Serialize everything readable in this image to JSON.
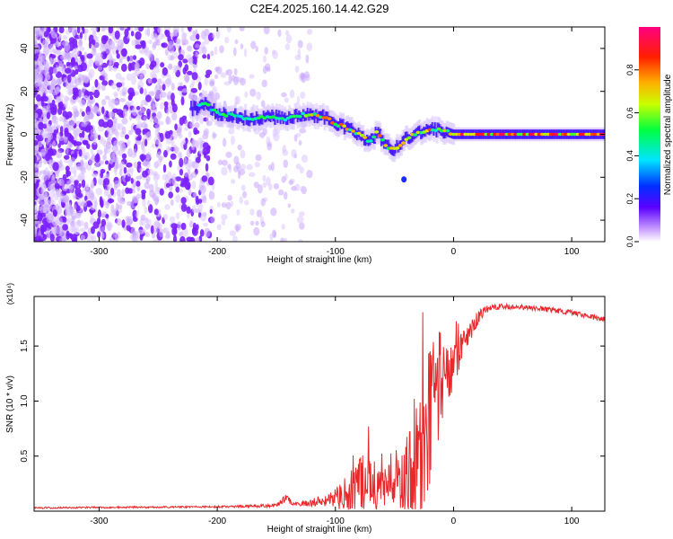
{
  "title": "C2E4.2025.160.14.42.G29",
  "chart_data": [
    {
      "type": "heatmap",
      "title": "C2E4.2025.160.14.42.G29",
      "xlabel": "Height of straight line (km)",
      "ylabel": "Frequency (Hz)",
      "xlim": [
        -355,
        128
      ],
      "ylim": [
        -50,
        50
      ],
      "x_ticks": [
        -300,
        -200,
        -100,
        0,
        100
      ],
      "y_ticks": [
        -40,
        -20,
        0,
        20,
        40
      ],
      "ridge": {
        "description": "centroid frequency of the dominant spectral ridge vs height",
        "x": [
          -220,
          -210,
          -200,
          -190,
          -180,
          -170,
          -160,
          -150,
          -140,
          -130,
          -120,
          -110,
          -100,
          -95,
          -90,
          -85,
          -80,
          -75,
          -70,
          -65,
          -60,
          -55,
          -50,
          -45,
          -40,
          -35,
          -30,
          -25,
          -20,
          -15,
          -10,
          -5,
          0,
          10,
          20,
          40,
          60,
          80,
          100,
          128
        ],
        "y": [
          12,
          14,
          10,
          9,
          8,
          7,
          8,
          8,
          7,
          9,
          9,
          8,
          5,
          4,
          3,
          2,
          0,
          -2,
          -3,
          1,
          -3,
          -6,
          -7,
          -5,
          -2,
          0,
          1,
          1,
          2,
          2,
          2,
          1,
          0,
          0,
          0,
          0,
          0,
          0,
          0,
          0
        ]
      },
      "noise_region_x": [
        -355,
        -200
      ],
      "colorbar": {
        "label": "Normalized spectral amplitude",
        "range": [
          0,
          1
        ],
        "ticks": [
          "0.0",
          "0.2",
          "0.4",
          "0.6",
          "0.8"
        ]
      }
    },
    {
      "type": "line",
      "title": "",
      "xlabel": "Height of straight line (km)",
      "ylabel": "SNR (10 * v/v)",
      "multiplier": "(x10⁴)",
      "xlim": [
        -355,
        128
      ],
      "ylim": [
        0,
        1.95
      ],
      "x_ticks": [
        -300,
        -200,
        -100,
        0,
        100
      ],
      "y_ticks": [
        "0.5",
        "1.0",
        "1.5"
      ],
      "line_color": "#e8292b",
      "envelope": {
        "description": "approximate SNR trend (x10^4) vs height; jagged noise of amplitude up to 'spread' overlaid",
        "x": [
          -355,
          -200,
          -150,
          -142,
          -135,
          -120,
          -100,
          -85,
          -75,
          -60,
          -45,
          -35,
          -25,
          -20,
          -15,
          -10,
          0,
          10,
          20,
          30,
          40,
          60,
          80,
          100,
          128
        ],
        "y": [
          0.03,
          0.04,
          0.05,
          0.12,
          0.06,
          0.08,
          0.12,
          0.18,
          0.3,
          0.2,
          0.25,
          0.4,
          0.55,
          0.9,
          1.0,
          1.1,
          1.3,
          1.55,
          1.75,
          1.85,
          1.86,
          1.85,
          1.83,
          1.8,
          1.74
        ],
        "spread": [
          0.01,
          0.01,
          0.02,
          0.05,
          0.02,
          0.05,
          0.1,
          0.3,
          0.4,
          0.25,
          0.35,
          0.6,
          0.9,
          0.8,
          0.6,
          0.4,
          0.3,
          0.15,
          0.08,
          0.04,
          0.03,
          0.03,
          0.03,
          0.03,
          0.03
        ]
      }
    }
  ]
}
